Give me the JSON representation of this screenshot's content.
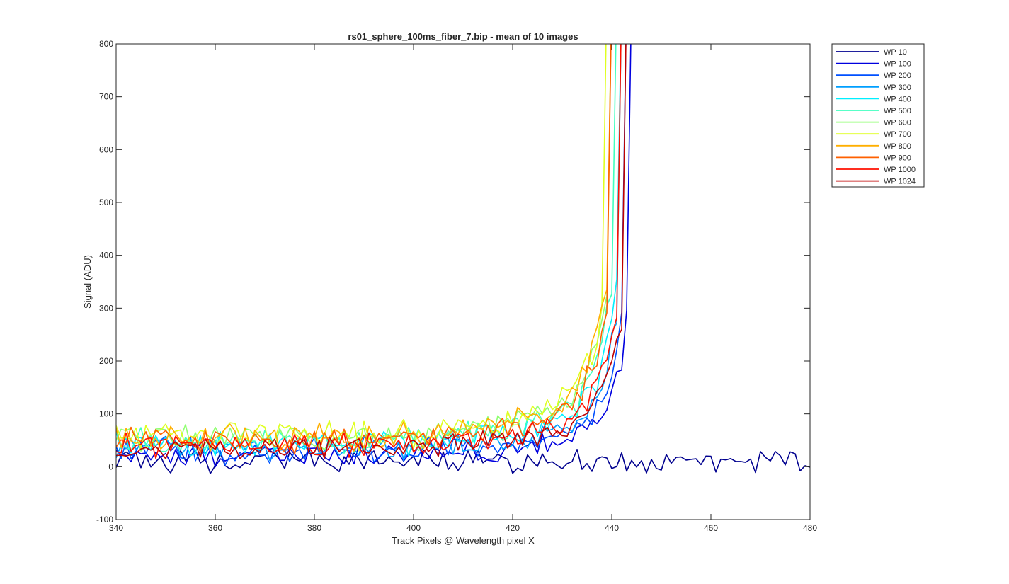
{
  "chart_data": {
    "type": "line",
    "title": "rs01_sphere_100ms_fiber_7.bip - mean of 10 images",
    "xlabel": "Track Pixels @ Wavelength pixel X",
    "ylabel": "Signal (ADU)",
    "xlim": [
      340,
      480
    ],
    "ylim": [
      -100,
      800
    ],
    "xticks": [
      340,
      360,
      380,
      400,
      420,
      440,
      460,
      480
    ],
    "yticks": [
      -100,
      0,
      100,
      200,
      300,
      400,
      500,
      600,
      700,
      800
    ],
    "grid": false,
    "legend_position": "outside-top-right",
    "series": [
      {
        "name": "WP 10",
        "color": "#00008f",
        "x_start": 340,
        "x_end": 480,
        "rise_at": null,
        "base": 10,
        "amp": 18,
        "seed": 11
      },
      {
        "name": "WP 100",
        "color": "#0000df",
        "x_start": 340,
        "x_end": 445,
        "rise_at": 443.5,
        "base": 22,
        "amp": 18,
        "seed": 23
      },
      {
        "name": "WP 200",
        "color": "#0050ff",
        "x_start": 340,
        "x_end": 444,
        "rise_at": 442.6,
        "base": 30,
        "amp": 20,
        "seed": 37
      },
      {
        "name": "WP 300",
        "color": "#009fff",
        "x_start": 340,
        "x_end": 443,
        "rise_at": 441.8,
        "base": 35,
        "amp": 20,
        "seed": 41
      },
      {
        "name": "WP 400",
        "color": "#00efff",
        "x_start": 340,
        "x_end": 443,
        "rise_at": 441.0,
        "base": 45,
        "amp": 20,
        "seed": 53
      },
      {
        "name": "WP 500",
        "color": "#40ffbf",
        "x_start": 340,
        "x_end": 443,
        "rise_at": 440.2,
        "base": 50,
        "amp": 20,
        "seed": 67
      },
      {
        "name": "WP 600",
        "color": "#8fff70",
        "x_start": 340,
        "x_end": 442,
        "rise_at": 439.5,
        "base": 58,
        "amp": 22,
        "seed": 71
      },
      {
        "name": "WP 700",
        "color": "#dfff20",
        "x_start": 340,
        "x_end": 442,
        "rise_at": 438.6,
        "base": 60,
        "amp": 22,
        "seed": 83
      },
      {
        "name": "WP 800",
        "color": "#ffaf00",
        "x_start": 340,
        "x_end": 442,
        "rise_at": 439.0,
        "base": 58,
        "amp": 22,
        "seed": 97
      },
      {
        "name": "WP 900",
        "color": "#ff6000",
        "x_start": 340,
        "x_end": 443,
        "rise_at": 439.8,
        "base": 50,
        "amp": 20,
        "seed": 101
      },
      {
        "name": "WP 1000",
        "color": "#ff1000",
        "x_start": 340,
        "x_end": 443,
        "rise_at": 441.5,
        "base": 42,
        "amp": 20,
        "seed": 113
      },
      {
        "name": "WP 1024",
        "color": "#bf0000",
        "x_start": 340,
        "x_end": 443,
        "rise_at": 442.0,
        "base": 35,
        "amp": 18,
        "seed": 127
      }
    ]
  }
}
